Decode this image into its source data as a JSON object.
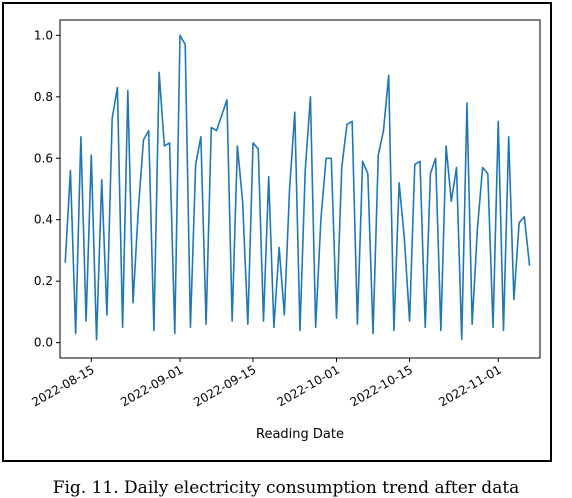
{
  "caption": "Fig. 11. Daily electricity consumption trend after data",
  "chart_data": {
    "type": "line",
    "title": "",
    "xlabel": "Reading Date",
    "ylabel": "",
    "xlim": [
      "2022-08-09",
      "2022-11-09"
    ],
    "ylim": [
      -0.05,
      1.05
    ],
    "yticks": [
      0.0,
      0.2,
      0.4,
      0.6,
      0.8,
      1.0
    ],
    "ytick_labels": [
      "0.0",
      "0.2",
      "0.4",
      "0.6",
      "0.8",
      "1.0"
    ],
    "xticks": [
      "2022-08-15",
      "2022-09-01",
      "2022-09-15",
      "2022-10-01",
      "2022-10-15",
      "2022-11-01"
    ],
    "xtick_labels": [
      "2022-08-15",
      "2022-09-01",
      "2022-09-15",
      "2022-10-01",
      "2022-10-15",
      "2022-11-01"
    ],
    "grid": false,
    "line_color": "#1f77b4",
    "series": [
      {
        "x": [
          "2022-08-10",
          "2022-08-11",
          "2022-08-12",
          "2022-08-13",
          "2022-08-14",
          "2022-08-15",
          "2022-08-16",
          "2022-08-17",
          "2022-08-18",
          "2022-08-19",
          "2022-08-20",
          "2022-08-21",
          "2022-08-22",
          "2022-08-23",
          "2022-08-24",
          "2022-08-25",
          "2022-08-26",
          "2022-08-27",
          "2022-08-28",
          "2022-08-29",
          "2022-08-30",
          "2022-08-31",
          "2022-09-01",
          "2022-09-02",
          "2022-09-03",
          "2022-09-04",
          "2022-09-05",
          "2022-09-06",
          "2022-09-07",
          "2022-09-08",
          "2022-09-09",
          "2022-09-10",
          "2022-09-11",
          "2022-09-12",
          "2022-09-13",
          "2022-09-14",
          "2022-09-15",
          "2022-09-16",
          "2022-09-17",
          "2022-09-18",
          "2022-09-19",
          "2022-09-20",
          "2022-09-21",
          "2022-09-22",
          "2022-09-23",
          "2022-09-24",
          "2022-09-25",
          "2022-09-26",
          "2022-09-27",
          "2022-09-28",
          "2022-09-29",
          "2022-09-30",
          "2022-10-01",
          "2022-10-02",
          "2022-10-03",
          "2022-10-04",
          "2022-10-05",
          "2022-10-06",
          "2022-10-07",
          "2022-10-08",
          "2022-10-09",
          "2022-10-10",
          "2022-10-11",
          "2022-10-12",
          "2022-10-13",
          "2022-10-14",
          "2022-10-15",
          "2022-10-16",
          "2022-10-17",
          "2022-10-18",
          "2022-10-19",
          "2022-10-20",
          "2022-10-21",
          "2022-10-22",
          "2022-10-23",
          "2022-10-24",
          "2022-10-25",
          "2022-10-26",
          "2022-10-27",
          "2022-10-28",
          "2022-10-29",
          "2022-10-30",
          "2022-10-31",
          "2022-11-01",
          "2022-11-02",
          "2022-11-03",
          "2022-11-04",
          "2022-11-05",
          "2022-11-06",
          "2022-11-07"
        ],
        "values": [
          0.26,
          0.56,
          0.03,
          0.67,
          0.07,
          0.61,
          0.01,
          0.53,
          0.09,
          0.73,
          0.83,
          0.05,
          0.82,
          0.13,
          0.43,
          0.66,
          0.69,
          0.04,
          0.88,
          0.64,
          0.65,
          0.03,
          1.0,
          0.97,
          0.05,
          0.58,
          0.67,
          0.06,
          0.7,
          0.69,
          0.74,
          0.79,
          0.07,
          0.64,
          0.46,
          0.06,
          0.65,
          0.63,
          0.07,
          0.54,
          0.05,
          0.31,
          0.09,
          0.5,
          0.75,
          0.04,
          0.56,
          0.8,
          0.05,
          0.4,
          0.6,
          0.6,
          0.08,
          0.57,
          0.71,
          0.72,
          0.06,
          0.59,
          0.55,
          0.03,
          0.61,
          0.69,
          0.87,
          0.04,
          0.52,
          0.34,
          0.07,
          0.58,
          0.59,
          0.05,
          0.55,
          0.6,
          0.04,
          0.64,
          0.46,
          0.57,
          0.01,
          0.78,
          0.06,
          0.37,
          0.57,
          0.55,
          0.05,
          0.72,
          0.04,
          0.67,
          0.14,
          0.39,
          0.41,
          0.25
        ]
      }
    ]
  }
}
